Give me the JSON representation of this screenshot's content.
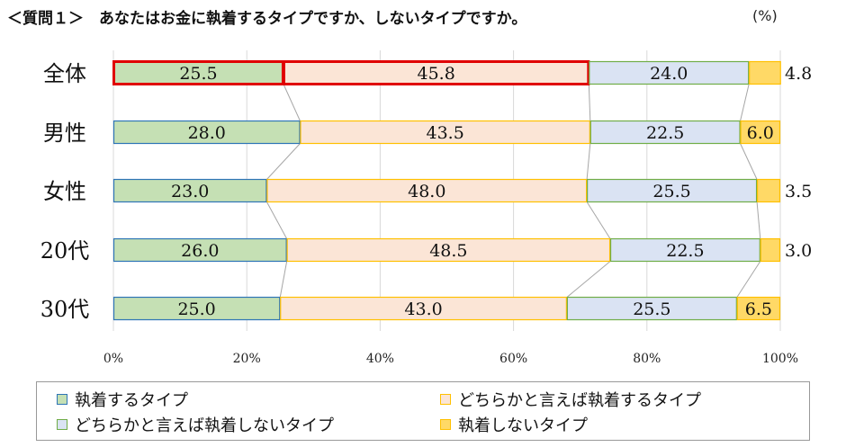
{
  "title": "＜質問１＞　あなたはお金に執着するタイプですか、しないタイプですか。",
  "unit": "(%)",
  "colors": {
    "series_fill": [
      "#c5e0b4",
      "#fbe5d6",
      "#dae3f3",
      "#ffd966"
    ],
    "series_border": [
      "#2e75b6",
      "#ffc000",
      "#70ad47",
      "#ffc000"
    ],
    "highlight": "#e00000",
    "connector": "#a6a6a6"
  },
  "chart_data": {
    "type": "bar",
    "orientation": "horizontal",
    "stacked": "percent",
    "categories": [
      "全体",
      "男性",
      "女性",
      "20代",
      "30代"
    ],
    "series": [
      {
        "name": "執着するタイプ",
        "values": [
          25.5,
          28.0,
          23.0,
          26.0,
          25.0
        ]
      },
      {
        "name": "どちらかと言えば執着するタイプ",
        "values": [
          45.8,
          43.5,
          48.0,
          48.5,
          43.0
        ]
      },
      {
        "name": "どちらかと言えば執着しないタイプ",
        "values": [
          24.0,
          22.5,
          25.5,
          22.5,
          25.5
        ]
      },
      {
        "name": "執着しないタイプ",
        "values": [
          4.8,
          6.0,
          3.5,
          3.0,
          6.5
        ]
      }
    ],
    "value_labels": [
      [
        "25.5",
        "45.8",
        "24.0",
        "4.8"
      ],
      [
        "28.0",
        "43.5",
        "22.5",
        "6.0"
      ],
      [
        "23.0",
        "48.0",
        "25.5",
        "3.5"
      ],
      [
        "26.0",
        "48.5",
        "22.5",
        "3.0"
      ],
      [
        "25.0",
        "43.0",
        "25.5",
        "6.5"
      ]
    ],
    "xlim": [
      0,
      100
    ],
    "xticks": [
      "0%",
      "20%",
      "40%",
      "60%",
      "80%",
      "100%"
    ],
    "grid": true,
    "series_lines": true,
    "highlight": {
      "category": "全体",
      "series": [
        "執着するタイプ",
        "どちらかと言えば執着するタイプ"
      ]
    },
    "legend_position": "bottom"
  }
}
